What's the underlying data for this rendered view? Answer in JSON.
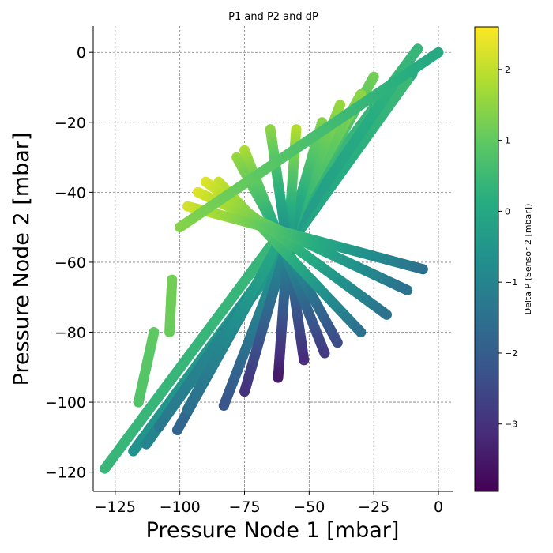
{
  "chart_data": {
    "type": "scatter",
    "title": "P1 and P2 and dP",
    "xlabel": "Pressure Node 1 [mbar]",
    "ylabel": "Pressure Node 2 [mbar]",
    "xlim": [
      -133.5,
      5.5
    ],
    "ylim": [
      -125.5,
      7.5
    ],
    "xticks": [
      -125,
      -100,
      -75,
      -50,
      -25,
      0
    ],
    "xtick_labels": [
      "−125",
      "−100",
      "−75",
      "−50",
      "−25",
      "0"
    ],
    "yticks": [
      -120,
      -100,
      -80,
      -60,
      -40,
      -20,
      0
    ],
    "ytick_labels": [
      "−120",
      "−100",
      "−80",
      "−60",
      "−40",
      "−20",
      "0"
    ],
    "grid": true,
    "colormap": "viridis",
    "colorbar": {
      "label": "Delta P (Sensor 2 [mbar])",
      "range": [
        -3.95,
        2.6
      ],
      "ticks": [
        2,
        1,
        0,
        -1,
        -2,
        -3
      ],
      "tick_labels": [
        "2",
        "1",
        "0",
        "−1",
        "−2",
        "−3"
      ]
    },
    "series": [
      {
        "x": [
          -8,
          -129
        ],
        "y": [
          1,
          -119
        ],
        "c": [
          0.4,
          0.4
        ]
      },
      {
        "x": [
          -10,
          -118
        ],
        "y": [
          -6,
          -114
        ],
        "c": [
          0.1,
          -0.6
        ]
      },
      {
        "x": [
          -12,
          -113
        ],
        "y": [
          -8,
          -112
        ],
        "c": [
          0.5,
          -1.0
        ]
      },
      {
        "x": [
          -18,
          -108
        ],
        "y": [
          -10,
          -107
        ],
        "c": [
          0.3,
          -1.3
        ]
      },
      {
        "x": [
          -25,
          -101
        ],
        "y": [
          -7,
          -108
        ],
        "c": [
          1.2,
          -1.8
        ]
      },
      {
        "x": [
          -30,
          -97
        ],
        "y": [
          -12,
          -102
        ],
        "c": [
          1.5,
          -1.5
        ]
      },
      {
        "x": [
          -38,
          -83
        ],
        "y": [
          -15,
          -101
        ],
        "c": [
          1.6,
          -2.2
        ]
      },
      {
        "x": [
          -45,
          -75
        ],
        "y": [
          -20,
          -97
        ],
        "c": [
          1.4,
          -3.0
        ]
      },
      {
        "x": [
          -55,
          -62
        ],
        "y": [
          -22,
          -93
        ],
        "c": [
          1.9,
          -3.5
        ]
      },
      {
        "x": [
          -65,
          -52
        ],
        "y": [
          -22,
          -88
        ],
        "c": [
          1.5,
          -3.1
        ]
      },
      {
        "x": [
          -75,
          -44
        ],
        "y": [
          -28,
          -86
        ],
        "c": [
          1.8,
          -2.8
        ]
      },
      {
        "x": [
          -78,
          -39
        ],
        "y": [
          -30,
          -83
        ],
        "c": [
          1.6,
          -2.4
        ]
      },
      {
        "x": [
          -85,
          -30
        ],
        "y": [
          -37,
          -80
        ],
        "c": [
          2.1,
          -1.5
        ]
      },
      {
        "x": [
          -90,
          -20
        ],
        "y": [
          -37,
          -75
        ],
        "c": [
          2.3,
          -1.5
        ]
      },
      {
        "x": [
          -93,
          -12
        ],
        "y": [
          -40,
          -68
        ],
        "c": [
          2.3,
          -1.5
        ]
      },
      {
        "x": [
          -97,
          -6
        ],
        "y": [
          -44,
          -62
        ],
        "c": [
          2.2,
          -1.5
        ]
      },
      {
        "x": [
          -100,
          0
        ],
        "y": [
          -50,
          0
        ],
        "c": [
          1.4,
          0.0
        ]
      },
      {
        "x": [
          -103,
          -104
        ],
        "y": [
          -65,
          -80
        ],
        "c": [
          1.2,
          1.1
        ]
      },
      {
        "x": [
          -110,
          -116
        ],
        "y": [
          -80,
          -100
        ],
        "c": [
          1.0,
          0.8
        ]
      }
    ]
  }
}
